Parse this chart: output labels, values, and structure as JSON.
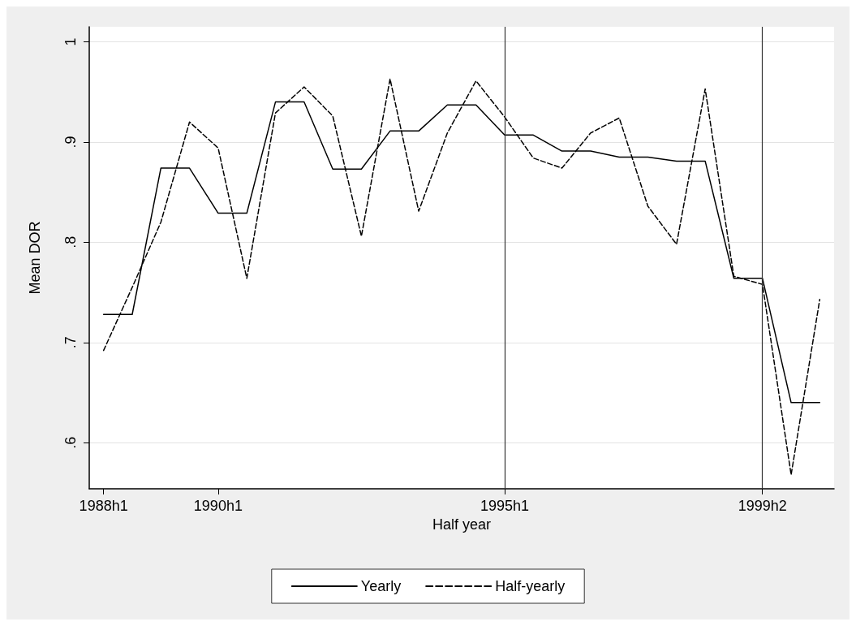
{
  "chart_data": {
    "type": "line",
    "xlabel": "Half year",
    "ylabel": "Mean DOR",
    "categories": [
      "1988h1",
      null,
      null,
      null,
      "1990h1",
      null,
      null,
      null,
      null,
      null,
      null,
      null,
      null,
      null,
      "1995h1",
      null,
      null,
      null,
      null,
      null,
      null,
      null,
      null,
      "1999h2",
      null,
      null
    ],
    "series": [
      {
        "name": "Yearly",
        "color": "#000000",
        "line_style": "solid",
        "values": [
          0.728,
          0.728,
          0.874,
          0.874,
          0.829,
          0.829,
          0.94,
          0.94,
          0.873,
          0.873,
          0.911,
          0.911,
          0.937,
          0.937,
          0.907,
          0.907,
          0.891,
          0.891,
          0.885,
          0.885,
          0.881,
          0.881,
          0.764,
          0.764,
          0.64,
          0.64
        ]
      },
      {
        "name": "Half-yearly",
        "color": "#000000",
        "line_style": "dashed",
        "values": [
          0.692,
          0.755,
          0.82,
          0.92,
          0.894,
          0.764,
          0.929,
          0.955,
          0.926,
          0.806,
          0.963,
          0.831,
          0.909,
          0.961,
          0.925,
          0.884,
          0.874,
          0.909,
          0.924,
          0.836,
          0.798,
          0.953,
          0.766,
          0.758,
          0.568,
          0.743
        ]
      }
    ],
    "ylim": [
      0.554,
      1.015
    ],
    "yticks": [
      {
        "value": 0.6,
        "label": ".6"
      },
      {
        "value": 0.7,
        "label": ".7"
      },
      {
        "value": 0.8,
        "label": ".8"
      },
      {
        "value": 0.9,
        "label": ".9"
      },
      {
        "value": 1,
        "label": "1"
      }
    ],
    "ref_lines": [
      {
        "axis": "x",
        "value": "1995h1",
        "color": "#333333"
      },
      {
        "axis": "x",
        "value": "1999h2",
        "color": "#333333"
      }
    ],
    "grid": "y",
    "legend": "bottom",
    "marker": "none"
  }
}
